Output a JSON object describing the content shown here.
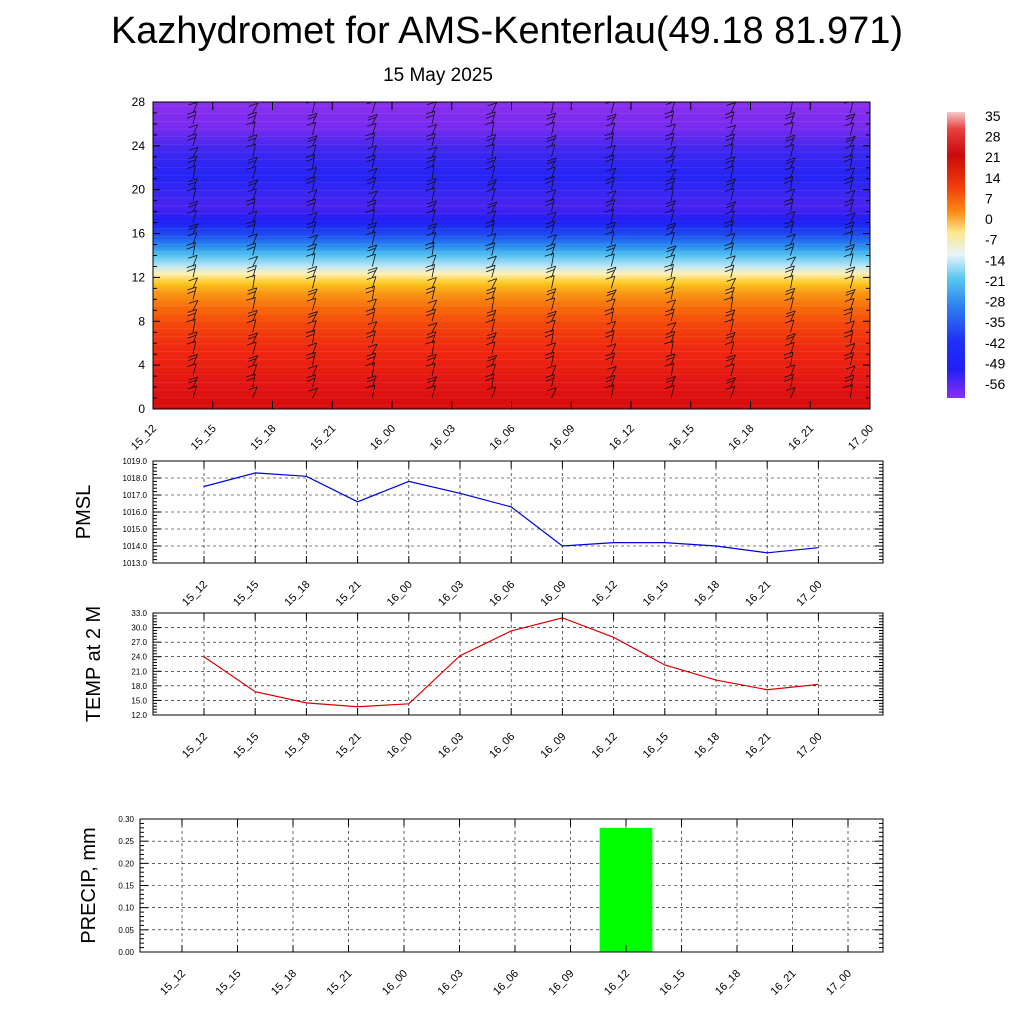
{
  "header": {
    "title": "Kazhydromet for AMS-Kenterlau(49.18 81.971)",
    "date": "15 May 2025"
  },
  "chart_data": [
    {
      "type": "heatmap",
      "ylim": [
        0,
        28
      ],
      "y_ticks": [
        "0",
        "4",
        "8",
        "12",
        "16",
        "20",
        "24",
        "28"
      ],
      "x_ticks": [
        "15_12",
        "15_15",
        "15_18",
        "15_21",
        "16_00",
        "16_03",
        "16_06",
        "16_09",
        "16_12",
        "16_15",
        "16_18",
        "16_21",
        "17_00"
      ],
      "colorbar_labels": [
        "35",
        "28",
        "21",
        "14",
        "7",
        "0",
        "-7",
        "-14",
        "-21",
        "-28",
        "-35",
        "-42",
        "-49",
        "-56"
      ],
      "wind_barbs": true
    },
    {
      "type": "line",
      "ylabel": "PMSL",
      "ylim": [
        1013.0,
        1019.0
      ],
      "y_ticks": [
        "1013.0",
        "1014.0",
        "1015.0",
        "1016.0",
        "1017.0",
        "1018.0",
        "1019.0"
      ],
      "x": [
        "15_12",
        "15_15",
        "15_18",
        "15_21",
        "16_00",
        "16_03",
        "16_06",
        "16_09",
        "16_12",
        "16_15",
        "16_18",
        "16_21",
        "17_00"
      ],
      "values": [
        1017.5,
        1018.3,
        1018.1,
        1016.6,
        1017.8,
        1017.1,
        1016.3,
        1014.0,
        1014.2,
        1014.2,
        1014.0,
        1013.6,
        1013.9
      ],
      "color": "#0000dd",
      "grid": true
    },
    {
      "type": "line",
      "ylabel": "TEMP at 2 M",
      "ylim": [
        12.0,
        33.0
      ],
      "y_ticks": [
        "12.0",
        "15.0",
        "18.0",
        "21.0",
        "24.0",
        "27.0",
        "30.0",
        "33.0"
      ],
      "x": [
        "15_12",
        "15_15",
        "15_18",
        "15_21",
        "16_00",
        "16_03",
        "16_06",
        "16_09",
        "16_12",
        "16_15",
        "16_18",
        "16_21",
        "17_00"
      ],
      "values": [
        24.0,
        16.8,
        14.5,
        13.7,
        14.3,
        24.2,
        29.3,
        32.0,
        28.0,
        22.3,
        19.2,
        17.2,
        18.3
      ],
      "color": "#dd0000",
      "grid": true
    },
    {
      "type": "bar",
      "ylabel": "PRECIP, mm",
      "ylim": [
        0.0,
        0.3
      ],
      "y_ticks": [
        "0.00",
        "0.05",
        "0.10",
        "0.15",
        "0.20",
        "0.25",
        "0.30"
      ],
      "categories": [
        "15_12",
        "15_15",
        "15_18",
        "15_21",
        "16_00",
        "16_03",
        "16_06",
        "16_09",
        "16_12",
        "16_15",
        "16_18",
        "16_21",
        "17_00"
      ],
      "values": [
        0,
        0,
        0,
        0,
        0,
        0,
        0,
        0,
        0.28,
        0,
        0,
        0,
        0
      ],
      "color": "#00ff00",
      "grid": true
    }
  ]
}
